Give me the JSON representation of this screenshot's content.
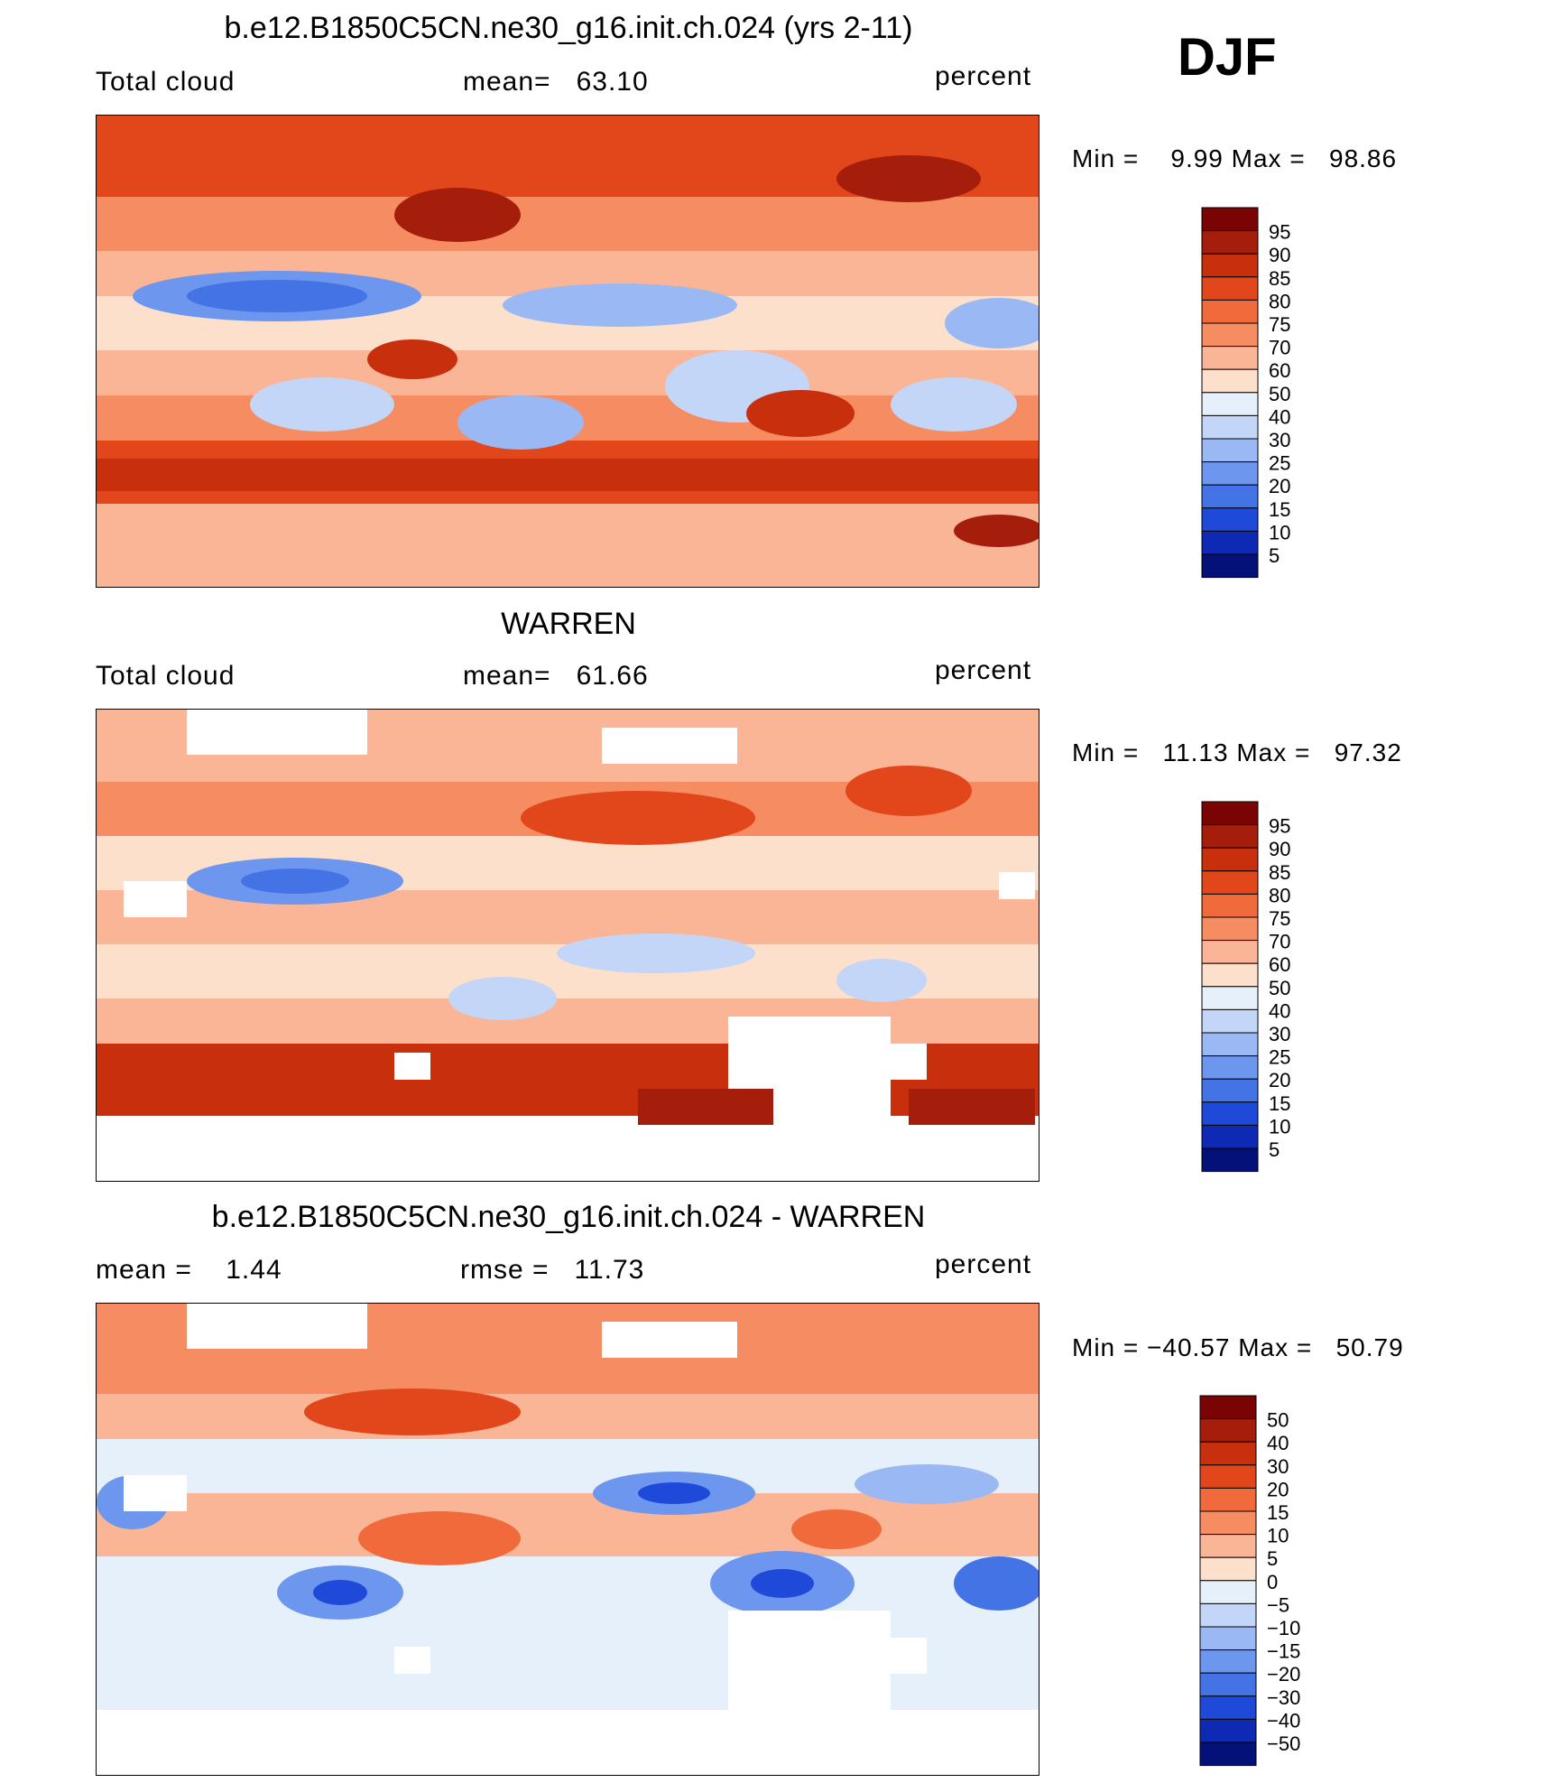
{
  "season": "DJF",
  "panels": [
    {
      "title": "b.e12.B1850C5CN.ne30_g16.init.ch.024 (yrs 2-11)",
      "left_label": "Total cloud",
      "center_label": "mean=   63.10",
      "units": "percent",
      "minmax": "Min =    9.99 Max =   98.86",
      "colorbar_labels": [
        "95",
        "90",
        "85",
        "80",
        "75",
        "70",
        "60",
        "50",
        "40",
        "30",
        "25",
        "20",
        "15",
        "10",
        "5"
      ]
    },
    {
      "title": "WARREN",
      "left_label": "Total cloud",
      "center_label": "mean=   61.66",
      "units": "percent",
      "minmax": "Min =   11.13 Max =   97.32",
      "colorbar_labels": [
        "95",
        "90",
        "85",
        "80",
        "75",
        "70",
        "60",
        "50",
        "40",
        "30",
        "25",
        "20",
        "15",
        "10",
        "5"
      ]
    },
    {
      "title": "b.e12.B1850C5CN.ne30_g16.init.ch.024 - WARREN",
      "left_label": "mean =    1.44",
      "center_label": "rmse =   11.73",
      "units": "percent",
      "minmax": "Min = −40.57 Max =   50.79",
      "colorbar_labels": [
        "50",
        "40",
        "30",
        "20",
        "15",
        "10",
        "5",
        "0",
        "−5",
        "−10",
        "−15",
        "−20",
        "−30",
        "−40",
        "−50"
      ]
    }
  ],
  "colors": {
    "palette": [
      "#7a0403",
      "#a51d0b",
      "#c8300d",
      "#e2471b",
      "#f06a3c",
      "#f68c61",
      "#fab596",
      "#fde0cc",
      "#e6f0fa",
      "#c3d6f7",
      "#9ab9f4",
      "#6d96ee",
      "#4473e5",
      "#1f49d9",
      "#0e29b4",
      "#041178"
    ],
    "missing": "#ffffff"
  }
}
